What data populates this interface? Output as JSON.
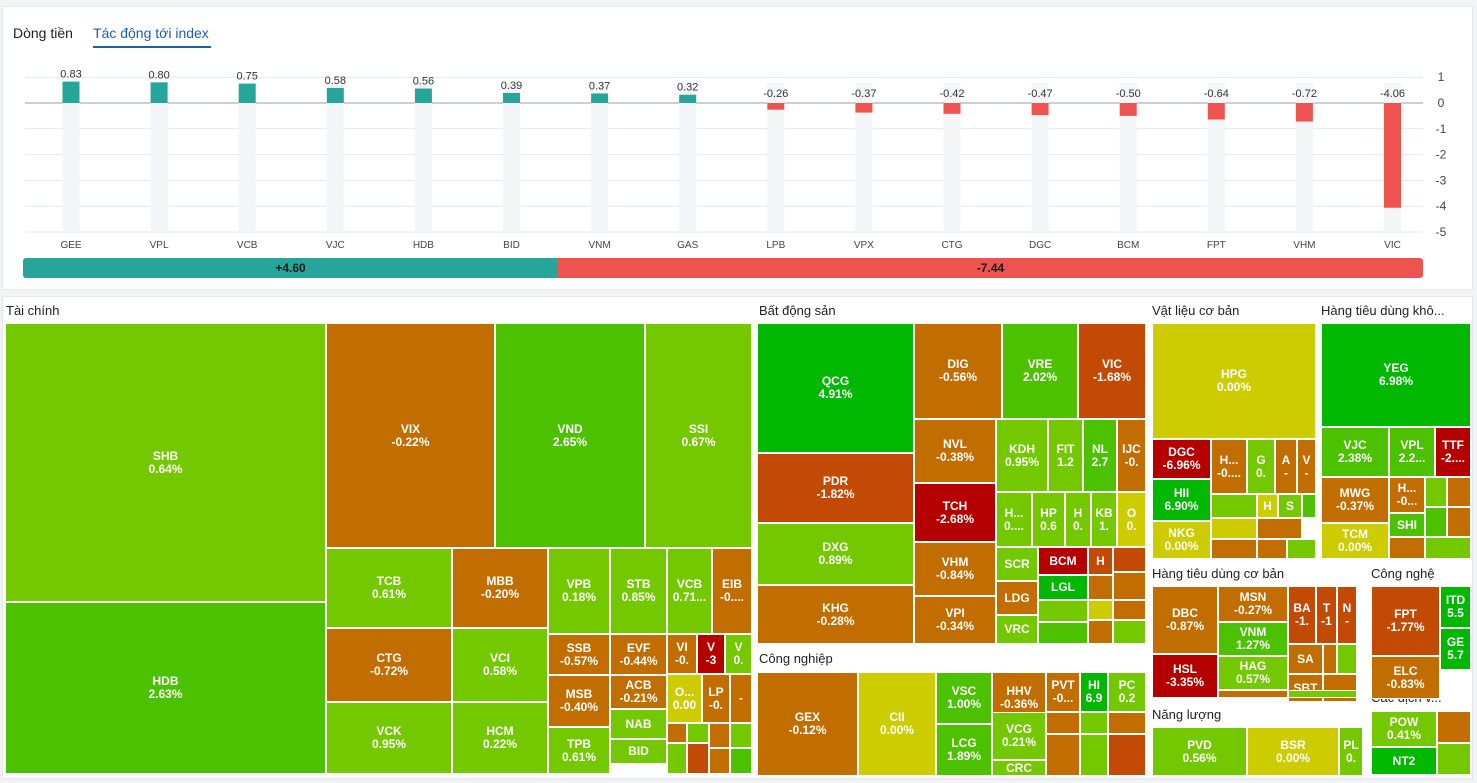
{
  "tabs": [
    {
      "label": "Dòng tiền",
      "active": false
    },
    {
      "label": "Tác động tới index",
      "active": true
    }
  ],
  "chart_data": {
    "type": "bar",
    "categories": [
      "GEE",
      "VPL",
      "VCB",
      "VJC",
      "HDB",
      "BID",
      "VNM",
      "GAS",
      "LPB",
      "VPX",
      "CTG",
      "DGC",
      "BCM",
      "FPT",
      "VHM",
      "VIC"
    ],
    "values": [
      0.83,
      0.8,
      0.75,
      0.58,
      0.56,
      0.39,
      0.37,
      0.32,
      -0.26,
      -0.37,
      -0.42,
      -0.47,
      -0.5,
      -0.64,
      -0.72,
      -4.06
    ],
    "value_labels": [
      "0.83",
      "0.80",
      "0.75",
      "0.58",
      "0.56",
      "0.39",
      "0.37",
      "0.32",
      "-0.26",
      "-0.37",
      "-0.42",
      "-0.47",
      "-0.50",
      "-0.64",
      "-0.72",
      "-4.06"
    ],
    "y_ticks": [
      "1",
      "0",
      "-1",
      "-2",
      "-3",
      "-4",
      "-5"
    ],
    "ylim": [
      -5,
      1
    ],
    "grid": true,
    "positive_color": "#26a69a",
    "negative_color": "#ef5350"
  },
  "summary": {
    "positive": "+4.60",
    "negative": "-7.44",
    "positive_value": 4.6,
    "negative_value": -7.44
  },
  "colors": {
    "g3": "#00b800",
    "g2": "#4cc100",
    "g1": "#73c800",
    "ref": "#cccc00",
    "r1": "#c26d00",
    "r2": "#c24a05",
    "r3": "#b50000"
  },
  "sectors": [
    {
      "title": "Tài chính"
    },
    {
      "title": "Bất động sản"
    },
    {
      "title": "Vật liệu cơ bản"
    },
    {
      "title": "Hàng tiêu dùng khô..."
    },
    {
      "title": "Công nghiệp"
    },
    {
      "title": "Hàng tiêu dùng cơ bản"
    },
    {
      "title": "Công nghệ"
    },
    {
      "title": "Các dịch v..."
    },
    {
      "title": "Năng lượng"
    }
  ],
  "tiles": [
    {
      "t": "SHB",
      "p": "0.64%",
      "c": "g1"
    },
    {
      "t": "HDB",
      "p": "2.63%",
      "c": "g2"
    },
    {
      "t": "VIX",
      "p": "-0.22%",
      "c": "r1"
    },
    {
      "t": "VND",
      "p": "2.65%",
      "c": "g2"
    },
    {
      "t": "SSI",
      "p": "0.67%",
      "c": "g1"
    },
    {
      "t": "TCB",
      "p": "0.61%",
      "c": "g1"
    },
    {
      "t": "MBB",
      "p": "-0.20%",
      "c": "r1"
    },
    {
      "t": "CTG",
      "p": "-0.72%",
      "c": "r1"
    },
    {
      "t": "VCI",
      "p": "0.58%",
      "c": "g1"
    },
    {
      "t": "VCK",
      "p": "0.95%",
      "c": "g1"
    },
    {
      "t": "HCM",
      "p": "0.22%",
      "c": "g1"
    },
    {
      "t": "VPB",
      "p": "0.18%",
      "c": "g1"
    },
    {
      "t": "STB",
      "p": "0.85%",
      "c": "g1"
    },
    {
      "t": "VCB",
      "p": "0.71...",
      "c": "g1"
    },
    {
      "t": "EIB",
      "p": "-0....",
      "c": "r1"
    },
    {
      "t": "SSB",
      "p": "-0.57%",
      "c": "r1"
    },
    {
      "t": "EVF",
      "p": "-0.44%",
      "c": "r1"
    },
    {
      "t": "VI",
      "p": "-0.",
      "c": "r1"
    },
    {
      "t": "V",
      "p": "-3",
      "c": "r3"
    },
    {
      "t": "V",
      "p": "0.",
      "c": "g1"
    },
    {
      "t": "ACB",
      "p": "-0.21%",
      "c": "r1"
    },
    {
      "t": "O...",
      "p": "0.00",
      "c": "ref"
    },
    {
      "t": "LP",
      "p": "-0.",
      "c": "r1"
    },
    {
      "t": "-",
      "p": "",
      "c": "r1"
    },
    {
      "t": "MSB",
      "p": "-0.40%",
      "c": "r1"
    },
    {
      "t": "NAB",
      "p": "",
      "c": "g1"
    },
    {
      "t": "TPB",
      "p": "0.61%",
      "c": "g1"
    },
    {
      "t": "BID",
      "p": "",
      "c": "g1"
    },
    {
      "t": "QCG",
      "p": "4.91%",
      "c": "g3"
    },
    {
      "t": "DIG",
      "p": "-0.56%",
      "c": "r1"
    },
    {
      "t": "VRE",
      "p": "2.02%",
      "c": "g2"
    },
    {
      "t": "VIC",
      "p": "-1.68%",
      "c": "r2"
    },
    {
      "t": "NVL",
      "p": "-0.38%",
      "c": "r1"
    },
    {
      "t": "KDH",
      "p": "0.95%",
      "c": "g1"
    },
    {
      "t": "FIT",
      "p": "1.2",
      "c": "g1"
    },
    {
      "t": "NL",
      "p": "2.7",
      "c": "g2"
    },
    {
      "t": "IJC",
      "p": "-0.",
      "c": "r1"
    },
    {
      "t": "PDR",
      "p": "-1.82%",
      "c": "r2"
    },
    {
      "t": "TCH",
      "p": "-2.68%",
      "c": "r3"
    },
    {
      "t": "H...",
      "p": "0....",
      "c": "g1"
    },
    {
      "t": "HP",
      "p": "0.6",
      "c": "g1"
    },
    {
      "t": "H",
      "p": "0.",
      "c": "g1"
    },
    {
      "t": "KB",
      "p": "1.",
      "c": "g1"
    },
    {
      "t": "O",
      "p": "0.",
      "c": "ref"
    },
    {
      "t": "DXG",
      "p": "0.89%",
      "c": "g1"
    },
    {
      "t": "VHM",
      "p": "-0.84%",
      "c": "r1"
    },
    {
      "t": "SCR",
      "p": "",
      "c": "g1"
    },
    {
      "t": "BCM",
      "p": "",
      "c": "r3"
    },
    {
      "t": "H",
      "p": "",
      "c": "r2"
    },
    {
      "t": "LGL",
      "p": "",
      "c": "g3"
    },
    {
      "t": "KHG",
      "p": "-0.28%",
      "c": "r1"
    },
    {
      "t": "VPI",
      "p": "-0.34%",
      "c": "r1"
    },
    {
      "t": "LDG",
      "p": "",
      "c": "r1"
    },
    {
      "t": "VRC",
      "p": "",
      "c": "g1"
    },
    {
      "t": "GEX",
      "p": "-0.12%",
      "c": "r1"
    },
    {
      "t": "CII",
      "p": "0.00%",
      "c": "ref"
    },
    {
      "t": "VSC",
      "p": "1.00%",
      "c": "g2"
    },
    {
      "t": "HHV",
      "p": "-0.36%",
      "c": "r1"
    },
    {
      "t": "PVT",
      "p": "-0...",
      "c": "r1"
    },
    {
      "t": "HI",
      "p": "6.9",
      "c": "g3"
    },
    {
      "t": "PC",
      "p": "0.2",
      "c": "g1"
    },
    {
      "t": "LCG",
      "p": "1.89%",
      "c": "g2"
    },
    {
      "t": "VCG",
      "p": "0.21%",
      "c": "g1"
    },
    {
      "t": "CRC",
      "p": "",
      "c": "g1"
    },
    {
      "t": "HPG",
      "p": "0.00%",
      "c": "ref"
    },
    {
      "t": "DGC",
      "p": "-6.96%",
      "c": "r3"
    },
    {
      "t": "H...",
      "p": "-0....",
      "c": "r1"
    },
    {
      "t": "G",
      "p": "0.",
      "c": "g1"
    },
    {
      "t": "A",
      "p": "-",
      "c": "r1"
    },
    {
      "t": "V",
      "p": "-",
      "c": "r1"
    },
    {
      "t": "HII",
      "p": "6.90%",
      "c": "g3"
    },
    {
      "t": "H",
      "p": "",
      "c": "ref"
    },
    {
      "t": "S",
      "p": "",
      "c": "g1"
    },
    {
      "t": "NKG",
      "p": "0.00%",
      "c": "ref"
    },
    {
      "t": "YEG",
      "p": "6.98%",
      "c": "g3"
    },
    {
      "t": "VJC",
      "p": "2.38%",
      "c": "g2"
    },
    {
      "t": "VPL",
      "p": "2.2...",
      "c": "g2"
    },
    {
      "t": "TTF",
      "p": "-2....",
      "c": "r3"
    },
    {
      "t": "MWG",
      "p": "-0.37%",
      "c": "r1"
    },
    {
      "t": "H...",
      "p": "-0...",
      "c": "r1"
    },
    {
      "t": "SHI",
      "p": "",
      "c": "g2"
    },
    {
      "t": "TCM",
      "p": "0.00%",
      "c": "ref"
    },
    {
      "t": "DBC",
      "p": "-0.87%",
      "c": "r1"
    },
    {
      "t": "MSN",
      "p": "-0.27%",
      "c": "r1"
    },
    {
      "t": "BA",
      "p": "-1.",
      "c": "r2"
    },
    {
      "t": "T",
      "p": "-1",
      "c": "r2"
    },
    {
      "t": "N",
      "p": "-",
      "c": "r2"
    },
    {
      "t": "VNM",
      "p": "1.27%",
      "c": "g2"
    },
    {
      "t": "SA",
      "p": "",
      "c": "r1"
    },
    {
      "t": "HSL",
      "p": "-3.35%",
      "c": "r3"
    },
    {
      "t": "HAG",
      "p": "0.57%",
      "c": "g1"
    },
    {
      "t": "SBT",
      "p": "",
      "c": "r1"
    },
    {
      "t": "FPT",
      "p": "-1.77%",
      "c": "r2"
    },
    {
      "t": "ITD",
      "p": "5.5",
      "c": "g3"
    },
    {
      "t": "GE",
      "p": "5.7",
      "c": "g3"
    },
    {
      "t": "ELC",
      "p": "-0.83%",
      "c": "r1"
    },
    {
      "t": "POW",
      "p": "0.41%",
      "c": "g1"
    },
    {
      "t": "NT2",
      "p": "",
      "c": "g3"
    },
    {
      "t": "PVD",
      "p": "0.56%",
      "c": "g1"
    },
    {
      "t": "BSR",
      "p": "0.00%",
      "c": "ref"
    },
    {
      "t": "PL",
      "p": "0.",
      "c": "g1"
    }
  ]
}
